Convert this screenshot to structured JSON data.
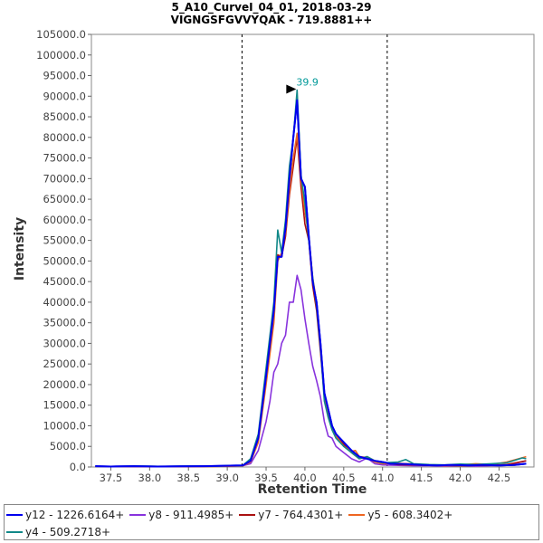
{
  "chart_data": {
    "type": "line",
    "title": "5_A10_CurveI_04_01, 2018-03-29",
    "subtitle": "VIGNGSFGVVYQAK - 719.8881++",
    "xlabel": "Retention Time",
    "ylabel": "Intensity",
    "xlim": [
      37.25,
      42.95
    ],
    "ylim": [
      0,
      105000
    ],
    "x_ticks": [
      "37.5",
      "38.0",
      "38.5",
      "39.0",
      "39.5",
      "40.0",
      "40.5",
      "41.0",
      "41.5",
      "42.0",
      "42.5"
    ],
    "y_ticks": [
      "0.0",
      "5000.0",
      "10000.0",
      "15000.0",
      "20000.0",
      "25000.0",
      "30000.0",
      "35000.0",
      "40000.0",
      "45000.0",
      "50000.0",
      "55000.0",
      "60000.0",
      "65000.0",
      "70000.0",
      "75000.0",
      "80000.0",
      "85000.0",
      "90000.0",
      "95000.0",
      "100000.0",
      "105000.0"
    ],
    "grid": false,
    "legend_position": "bottom",
    "vlines": [
      39.19,
      41.06
    ],
    "peak_annotation": {
      "label": "39.9",
      "x": 39.9,
      "y": 91500
    },
    "series": [
      {
        "name": "y12 - 1226.6164+",
        "color": "#0000ee",
        "points": [
          [
            37.3,
            200
          ],
          [
            37.5,
            100
          ],
          [
            37.8,
            200
          ],
          [
            38.1,
            100
          ],
          [
            38.4,
            150
          ],
          [
            38.7,
            200
          ],
          [
            39.0,
            300
          ],
          [
            39.2,
            400
          ],
          [
            39.3,
            1500
          ],
          [
            39.4,
            7000
          ],
          [
            39.5,
            22000
          ],
          [
            39.6,
            38000
          ],
          [
            39.65,
            51000
          ],
          [
            39.7,
            51000
          ],
          [
            39.75,
            58000
          ],
          [
            39.8,
            70000
          ],
          [
            39.85,
            80000
          ],
          [
            39.9,
            89000
          ],
          [
            39.95,
            70000
          ],
          [
            40.0,
            68000
          ],
          [
            40.05,
            56000
          ],
          [
            40.1,
            45000
          ],
          [
            40.15,
            40000
          ],
          [
            40.2,
            30000
          ],
          [
            40.25,
            18000
          ],
          [
            40.3,
            14000
          ],
          [
            40.35,
            10000
          ],
          [
            40.4,
            8000
          ],
          [
            40.5,
            6000
          ],
          [
            40.6,
            4000
          ],
          [
            40.7,
            2500
          ],
          [
            40.8,
            2000
          ],
          [
            40.9,
            1500
          ],
          [
            41.0,
            1200
          ],
          [
            41.1,
            800
          ],
          [
            41.3,
            700
          ],
          [
            41.5,
            500
          ],
          [
            41.7,
            400
          ],
          [
            41.9,
            500
          ],
          [
            42.1,
            400
          ],
          [
            42.3,
            500
          ],
          [
            42.5,
            400
          ],
          [
            42.7,
            500
          ],
          [
            42.85,
            800
          ]
        ]
      },
      {
        "name": "y8 - 911.4985+",
        "color": "#8833dd",
        "points": [
          [
            37.3,
            100
          ],
          [
            37.6,
            100
          ],
          [
            37.9,
            100
          ],
          [
            38.2,
            150
          ],
          [
            38.5,
            100
          ],
          [
            38.8,
            200
          ],
          [
            39.0,
            200
          ],
          [
            39.2,
            300
          ],
          [
            39.3,
            800
          ],
          [
            39.4,
            4000
          ],
          [
            39.5,
            11000
          ],
          [
            39.55,
            16000
          ],
          [
            39.6,
            23000
          ],
          [
            39.65,
            25000
          ],
          [
            39.7,
            30000
          ],
          [
            39.75,
            32000
          ],
          [
            39.8,
            40000
          ],
          [
            39.85,
            40000
          ],
          [
            39.9,
            46500
          ],
          [
            39.95,
            43000
          ],
          [
            40.0,
            36000
          ],
          [
            40.05,
            30000
          ],
          [
            40.1,
            24500
          ],
          [
            40.15,
            21000
          ],
          [
            40.2,
            17000
          ],
          [
            40.25,
            11000
          ],
          [
            40.3,
            7500
          ],
          [
            40.35,
            7000
          ],
          [
            40.4,
            5000
          ],
          [
            40.5,
            3500
          ],
          [
            40.6,
            2000
          ],
          [
            40.7,
            1200
          ],
          [
            40.8,
            2200
          ],
          [
            40.85,
            1500
          ],
          [
            40.9,
            800
          ],
          [
            41.0,
            500
          ],
          [
            41.2,
            400
          ],
          [
            41.4,
            300
          ],
          [
            41.6,
            300
          ],
          [
            41.8,
            200
          ],
          [
            42.0,
            300
          ],
          [
            42.2,
            200
          ],
          [
            42.4,
            300
          ],
          [
            42.6,
            400
          ],
          [
            42.85,
            1500
          ]
        ]
      },
      {
        "name": "y7 - 764.4301+",
        "color": "#aa1111",
        "points": [
          [
            37.3,
            100
          ],
          [
            37.6,
            150
          ],
          [
            37.9,
            100
          ],
          [
            38.2,
            150
          ],
          [
            38.5,
            100
          ],
          [
            38.8,
            150
          ],
          [
            39.0,
            200
          ],
          [
            39.2,
            350
          ],
          [
            39.3,
            1500
          ],
          [
            39.4,
            7000
          ],
          [
            39.5,
            21000
          ],
          [
            39.6,
            36000
          ],
          [
            39.65,
            51500
          ],
          [
            39.7,
            51000
          ],
          [
            39.75,
            56000
          ],
          [
            39.8,
            66000
          ],
          [
            39.85,
            73000
          ],
          [
            39.9,
            80000
          ],
          [
            39.95,
            68000
          ],
          [
            40.0,
            59000
          ],
          [
            40.05,
            55000
          ],
          [
            40.1,
            44000
          ],
          [
            40.15,
            38000
          ],
          [
            40.2,
            28000
          ],
          [
            40.25,
            17000
          ],
          [
            40.3,
            12500
          ],
          [
            40.35,
            9500
          ],
          [
            40.4,
            7500
          ],
          [
            40.5,
            5500
          ],
          [
            40.6,
            3500
          ],
          [
            40.7,
            2000
          ],
          [
            40.8,
            2500
          ],
          [
            40.9,
            1500
          ],
          [
            41.0,
            1000
          ],
          [
            41.2,
            600
          ],
          [
            41.4,
            500
          ],
          [
            41.6,
            400
          ],
          [
            41.8,
            400
          ],
          [
            42.0,
            300
          ],
          [
            42.2,
            400
          ],
          [
            42.4,
            400
          ],
          [
            42.6,
            600
          ],
          [
            42.85,
            1500
          ]
        ]
      },
      {
        "name": "y5 - 608.3402+",
        "color": "#ee6622",
        "points": [
          [
            37.3,
            100
          ],
          [
            37.6,
            100
          ],
          [
            37.9,
            150
          ],
          [
            38.2,
            100
          ],
          [
            38.5,
            150
          ],
          [
            38.8,
            100
          ],
          [
            39.0,
            200
          ],
          [
            39.2,
            300
          ],
          [
            39.3,
            1200
          ],
          [
            39.4,
            6000
          ],
          [
            39.5,
            20000
          ],
          [
            39.6,
            35000
          ],
          [
            39.65,
            50000
          ],
          [
            39.7,
            52000
          ],
          [
            39.75,
            57000
          ],
          [
            39.8,
            67000
          ],
          [
            39.85,
            75000
          ],
          [
            39.9,
            81000
          ],
          [
            39.95,
            70000
          ],
          [
            40.0,
            62000
          ],
          [
            40.05,
            56000
          ],
          [
            40.1,
            46000
          ],
          [
            40.15,
            40000
          ],
          [
            40.2,
            30000
          ],
          [
            40.25,
            17500
          ],
          [
            40.3,
            13000
          ],
          [
            40.35,
            9500
          ],
          [
            40.4,
            7500
          ],
          [
            40.5,
            5000
          ],
          [
            40.6,
            3800
          ],
          [
            40.65,
            4000
          ],
          [
            40.7,
            2500
          ],
          [
            40.8,
            2300
          ],
          [
            40.9,
            1200
          ],
          [
            41.0,
            800
          ],
          [
            41.2,
            900
          ],
          [
            41.4,
            700
          ],
          [
            41.6,
            500
          ],
          [
            41.8,
            300
          ],
          [
            42.0,
            500
          ],
          [
            42.2,
            800
          ],
          [
            42.4,
            600
          ],
          [
            42.6,
            1200
          ],
          [
            42.85,
            2500
          ]
        ]
      },
      {
        "name": "y4 - 509.2718+",
        "color": "#118888",
        "points": [
          [
            37.3,
            100
          ],
          [
            37.6,
            150
          ],
          [
            37.9,
            200
          ],
          [
            38.2,
            150
          ],
          [
            38.5,
            200
          ],
          [
            38.8,
            150
          ],
          [
            39.0,
            300
          ],
          [
            39.2,
            400
          ],
          [
            39.3,
            2000
          ],
          [
            39.4,
            8000
          ],
          [
            39.5,
            24000
          ],
          [
            39.6,
            40000
          ],
          [
            39.65,
            57500
          ],
          [
            39.7,
            52000
          ],
          [
            39.75,
            60000
          ],
          [
            39.8,
            73000
          ],
          [
            39.85,
            80000
          ],
          [
            39.9,
            91500
          ],
          [
            39.95,
            71000
          ],
          [
            40.0,
            64000
          ],
          [
            40.05,
            55000
          ],
          [
            40.1,
            46000
          ],
          [
            40.15,
            39000
          ],
          [
            40.2,
            29000
          ],
          [
            40.25,
            16000
          ],
          [
            40.3,
            12000
          ],
          [
            40.35,
            9000
          ],
          [
            40.4,
            7000
          ],
          [
            40.5,
            5000
          ],
          [
            40.6,
            3500
          ],
          [
            40.7,
            2000
          ],
          [
            40.8,
            2500
          ],
          [
            40.9,
            1500
          ],
          [
            41.0,
            1000
          ],
          [
            41.2,
            1200
          ],
          [
            41.3,
            1800
          ],
          [
            41.4,
            800
          ],
          [
            41.6,
            600
          ],
          [
            41.8,
            500
          ],
          [
            42.0,
            700
          ],
          [
            42.2,
            600
          ],
          [
            42.4,
            800
          ],
          [
            42.6,
            1000
          ],
          [
            42.8,
            2200
          ],
          [
            42.85,
            2000
          ]
        ]
      }
    ]
  }
}
